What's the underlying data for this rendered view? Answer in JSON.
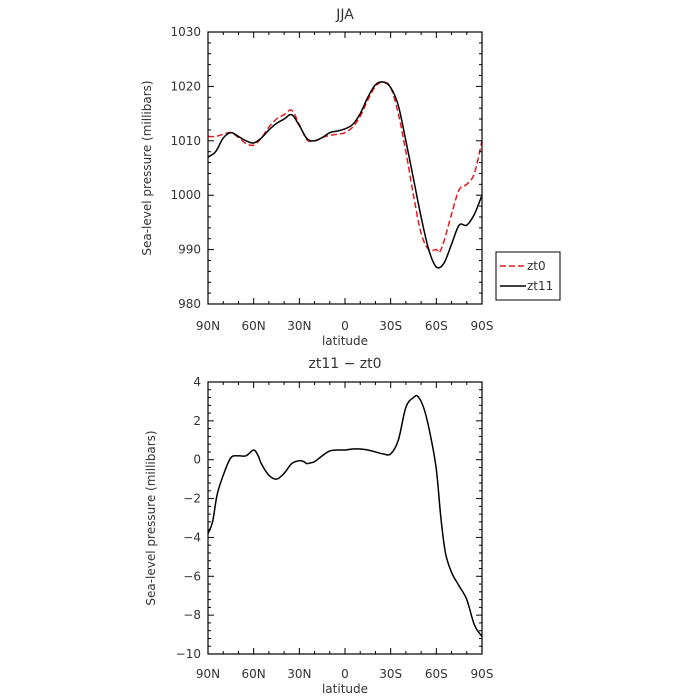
{
  "chart_data": [
    {
      "type": "line",
      "title": "JJA",
      "xlabel": "latitude",
      "ylabel": "Sea-level pressure (millibars)",
      "xlim": [
        90,
        -90
      ],
      "ylim": [
        980,
        1030
      ],
      "x_ticks": [
        90,
        60,
        30,
        0,
        -30,
        -60,
        -90
      ],
      "x_tick_labels": [
        "90N",
        "60N",
        "30N",
        "0",
        "30S",
        "60S",
        "90S"
      ],
      "y_ticks": [
        980,
        990,
        1000,
        1010,
        1020,
        1030
      ],
      "y_tick_labels": [
        "980",
        "990",
        "1000",
        "1010",
        "1020",
        "1030"
      ],
      "legend_position": "right-bottom-outside",
      "series": [
        {
          "name": "zt0",
          "color": "#e41a1c",
          "dash": "dashed",
          "x": [
            90,
            85,
            80,
            75,
            70,
            65,
            60,
            55,
            50,
            45,
            40,
            35,
            30,
            25,
            20,
            15,
            10,
            5,
            0,
            -5,
            -10,
            -15,
            -20,
            -25,
            -30,
            -35,
            -40,
            -45,
            -50,
            -55,
            -60,
            -62,
            -65,
            -70,
            -75,
            -80,
            -85,
            -90
          ],
          "y": [
            1010.8,
            1010.8,
            1011.2,
            1011.5,
            1010.6,
            1009.5,
            1009.2,
            1010.5,
            1012.5,
            1014.0,
            1014.8,
            1015.6,
            1013.0,
            1010.2,
            1010.0,
            1010.6,
            1011.0,
            1011.2,
            1011.5,
            1012.5,
            1014.5,
            1017.5,
            1020.0,
            1020.8,
            1019.8,
            1015.0,
            1008.0,
            1000.0,
            993.0,
            990.0,
            990.0,
            989.5,
            991.5,
            996.5,
            1001.0,
            1002.0,
            1004.0,
            1010.0
          ]
        },
        {
          "name": "zt11",
          "color": "#000000",
          "dash": "solid",
          "x": [
            90,
            85,
            80,
            75,
            70,
            65,
            60,
            55,
            50,
            45,
            40,
            35,
            30,
            25,
            20,
            15,
            10,
            5,
            0,
            -5,
            -10,
            -15,
            -20,
            -25,
            -30,
            -35,
            -40,
            -45,
            -50,
            -55,
            -60,
            -65,
            -70,
            -75,
            -80,
            -85,
            -90
          ],
          "y": [
            1007.0,
            1008.0,
            1010.5,
            1011.5,
            1010.8,
            1010.0,
            1009.6,
            1010.5,
            1012.0,
            1013.2,
            1014.0,
            1014.8,
            1012.8,
            1010.4,
            1010.0,
            1010.6,
            1011.5,
            1011.8,
            1012.2,
            1013.0,
            1015.0,
            1018.0,
            1020.3,
            1020.8,
            1019.8,
            1016.5,
            1010.0,
            1003.0,
            996.0,
            990.0,
            986.8,
            987.5,
            991.0,
            994.5,
            994.5,
            996.5,
            1000.0
          ]
        }
      ]
    },
    {
      "type": "line",
      "title": "zt11 − zt0",
      "xlabel": "latitude",
      "ylabel": "Sea-level pressure (millibars)",
      "xlim": [
        90,
        -90
      ],
      "ylim": [
        -10,
        4
      ],
      "x_ticks": [
        90,
        60,
        30,
        0,
        -30,
        -60,
        -90
      ],
      "x_tick_labels": [
        "90N",
        "60N",
        "30N",
        "0",
        "30S",
        "60S",
        "90S"
      ],
      "y_ticks": [
        -10,
        -8,
        -6,
        -4,
        -2,
        0,
        2,
        4
      ],
      "y_tick_labels": [
        "−10",
        "−8",
        "−6",
        "−4",
        "−2",
        "0",
        "2",
        "4"
      ],
      "series": [
        {
          "color": "#000000",
          "dash": "solid",
          "x": [
            90,
            87,
            84,
            80,
            75,
            70,
            65,
            60,
            57,
            55,
            50,
            45,
            40,
            35,
            30,
            27,
            25,
            22,
            20,
            15,
            10,
            5,
            0,
            -5,
            -10,
            -15,
            -20,
            -25,
            -30,
            -35,
            -40,
            -45,
            -48,
            -52,
            -56,
            -60,
            -63,
            -66,
            -70,
            -75,
            -80,
            -85,
            -90
          ],
          "y": [
            -3.8,
            -3.2,
            -1.8,
            -0.8,
            0.1,
            0.2,
            0.2,
            0.5,
            0.2,
            -0.2,
            -0.8,
            -1.0,
            -0.7,
            -0.2,
            -0.05,
            -0.1,
            -0.2,
            -0.15,
            -0.1,
            0.2,
            0.45,
            0.5,
            0.5,
            0.55,
            0.55,
            0.5,
            0.4,
            0.3,
            0.3,
            1.0,
            2.7,
            3.2,
            3.25,
            2.6,
            1.3,
            -0.5,
            -3.0,
            -4.8,
            -5.8,
            -6.5,
            -7.2,
            -8.5,
            -9.1
          ]
        }
      ]
    }
  ]
}
